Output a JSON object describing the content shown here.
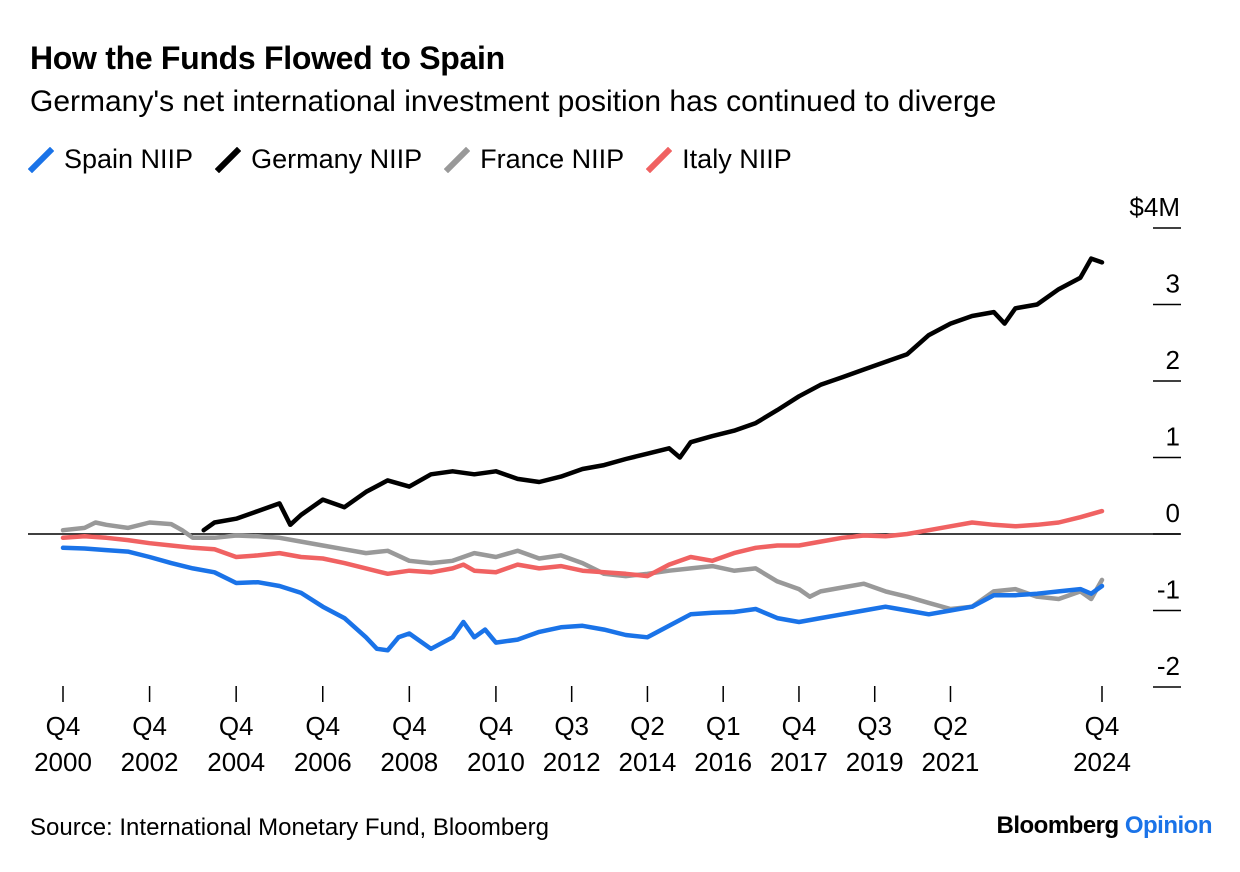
{
  "title": "How the Funds Flowed to Spain",
  "subtitle": "Germany's net international investment position has continued to diverge",
  "source": "Source: International Monetary Fund, Bloomberg",
  "brand": {
    "name": "Bloomberg",
    "suffix": "Opinion"
  },
  "colors": {
    "spain": "#1a73e8",
    "germany": "#000000",
    "france": "#999999",
    "italy": "#f06262"
  },
  "chart_data": {
    "type": "line",
    "title": "How the Funds Flowed to Spain",
    "subtitle": "Germany's net international investment position has continued to diverge",
    "y_unit_label": "$4M",
    "ylim": [
      -2,
      4
    ],
    "xlim": [
      2000.75,
      2024.75
    ],
    "y_ticks": [
      {
        "value": 4,
        "label": "$4M"
      },
      {
        "value": 3,
        "label": "3"
      },
      {
        "value": 2,
        "label": "2"
      },
      {
        "value": 1,
        "label": "1"
      },
      {
        "value": 0,
        "label": "0"
      },
      {
        "value": -1,
        "label": "-1"
      },
      {
        "value": -2,
        "label": "-2"
      }
    ],
    "x_ticks": [
      {
        "x": 2000.75,
        "line1": "Q4",
        "line2": "2000"
      },
      {
        "x": 2002.75,
        "line1": "Q4",
        "line2": "2002"
      },
      {
        "x": 2004.75,
        "line1": "Q4",
        "line2": "2004"
      },
      {
        "x": 2006.75,
        "line1": "Q4",
        "line2": "2006"
      },
      {
        "x": 2008.75,
        "line1": "Q4",
        "line2": "2008"
      },
      {
        "x": 2010.75,
        "line1": "Q4",
        "line2": "2010"
      },
      {
        "x": 2012.5,
        "line1": "Q3",
        "line2": "2012"
      },
      {
        "x": 2014.25,
        "line1": "Q2",
        "line2": "2014"
      },
      {
        "x": 2016.0,
        "line1": "Q1",
        "line2": "2016"
      },
      {
        "x": 2017.75,
        "line1": "Q4",
        "line2": "2017"
      },
      {
        "x": 2019.5,
        "line1": "Q3",
        "line2": "2019"
      },
      {
        "x": 2021.25,
        "line1": "Q2",
        "line2": "2021"
      },
      {
        "x": 2024.75,
        "line1": "Q4",
        "line2": "2024"
      }
    ],
    "series": [
      {
        "name": "Spain NIIP",
        "key": "spain",
        "points": [
          [
            2000.75,
            -0.18
          ],
          [
            2001.25,
            -0.19
          ],
          [
            2001.75,
            -0.21
          ],
          [
            2002.25,
            -0.23
          ],
          [
            2002.75,
            -0.3
          ],
          [
            2003.25,
            -0.38
          ],
          [
            2003.75,
            -0.45
          ],
          [
            2004.25,
            -0.5
          ],
          [
            2004.75,
            -0.64
          ],
          [
            2005.25,
            -0.63
          ],
          [
            2005.75,
            -0.68
          ],
          [
            2006.25,
            -0.77
          ],
          [
            2006.75,
            -0.95
          ],
          [
            2007.25,
            -1.1
          ],
          [
            2007.75,
            -1.35
          ],
          [
            2008.0,
            -1.5
          ],
          [
            2008.25,
            -1.52
          ],
          [
            2008.5,
            -1.35
          ],
          [
            2008.75,
            -1.3
          ],
          [
            2009.25,
            -1.5
          ],
          [
            2009.75,
            -1.35
          ],
          [
            2010.0,
            -1.15
          ],
          [
            2010.25,
            -1.35
          ],
          [
            2010.5,
            -1.25
          ],
          [
            2010.75,
            -1.42
          ],
          [
            2011.25,
            -1.38
          ],
          [
            2011.75,
            -1.28
          ],
          [
            2012.25,
            -1.22
          ],
          [
            2012.75,
            -1.2
          ],
          [
            2013.25,
            -1.25
          ],
          [
            2013.75,
            -1.32
          ],
          [
            2014.25,
            -1.35
          ],
          [
            2014.75,
            -1.2
          ],
          [
            2015.25,
            -1.05
          ],
          [
            2015.75,
            -1.03
          ],
          [
            2016.25,
            -1.02
          ],
          [
            2016.75,
            -0.98
          ],
          [
            2017.25,
            -1.1
          ],
          [
            2017.75,
            -1.15
          ],
          [
            2018.25,
            -1.1
          ],
          [
            2018.75,
            -1.05
          ],
          [
            2019.25,
            -1.0
          ],
          [
            2019.75,
            -0.95
          ],
          [
            2020.25,
            -1.0
          ],
          [
            2020.75,
            -1.05
          ],
          [
            2021.25,
            -1.0
          ],
          [
            2021.75,
            -0.95
          ],
          [
            2022.25,
            -0.8
          ],
          [
            2022.75,
            -0.8
          ],
          [
            2023.25,
            -0.78
          ],
          [
            2023.75,
            -0.75
          ],
          [
            2024.25,
            -0.72
          ],
          [
            2024.5,
            -0.78
          ],
          [
            2024.75,
            -0.68
          ]
        ]
      },
      {
        "name": "Germany NIIP",
        "key": "germany",
        "points": [
          [
            2004.0,
            0.05
          ],
          [
            2004.25,
            0.15
          ],
          [
            2004.75,
            0.2
          ],
          [
            2005.25,
            0.3
          ],
          [
            2005.75,
            0.4
          ],
          [
            2006.0,
            0.12
          ],
          [
            2006.25,
            0.25
          ],
          [
            2006.75,
            0.45
          ],
          [
            2007.25,
            0.35
          ],
          [
            2007.75,
            0.55
          ],
          [
            2008.25,
            0.7
          ],
          [
            2008.75,
            0.62
          ],
          [
            2009.25,
            0.78
          ],
          [
            2009.75,
            0.82
          ],
          [
            2010.25,
            0.78
          ],
          [
            2010.75,
            0.82
          ],
          [
            2011.25,
            0.72
          ],
          [
            2011.75,
            0.68
          ],
          [
            2012.25,
            0.75
          ],
          [
            2012.75,
            0.85
          ],
          [
            2013.25,
            0.9
          ],
          [
            2013.75,
            0.98
          ],
          [
            2014.25,
            1.05
          ],
          [
            2014.75,
            1.12
          ],
          [
            2015.0,
            1.0
          ],
          [
            2015.25,
            1.2
          ],
          [
            2015.75,
            1.28
          ],
          [
            2016.25,
            1.35
          ],
          [
            2016.75,
            1.45
          ],
          [
            2017.25,
            1.62
          ],
          [
            2017.75,
            1.8
          ],
          [
            2018.25,
            1.95
          ],
          [
            2018.75,
            2.05
          ],
          [
            2019.25,
            2.15
          ],
          [
            2019.75,
            2.25
          ],
          [
            2020.25,
            2.35
          ],
          [
            2020.75,
            2.6
          ],
          [
            2021.25,
            2.75
          ],
          [
            2021.75,
            2.85
          ],
          [
            2022.25,
            2.9
          ],
          [
            2022.5,
            2.75
          ],
          [
            2022.75,
            2.95
          ],
          [
            2023.25,
            3.0
          ],
          [
            2023.75,
            3.2
          ],
          [
            2024.25,
            3.35
          ],
          [
            2024.5,
            3.6
          ],
          [
            2024.75,
            3.55
          ]
        ]
      },
      {
        "name": "France NIIP",
        "key": "france",
        "points": [
          [
            2000.75,
            0.05
          ],
          [
            2001.25,
            0.08
          ],
          [
            2001.5,
            0.15
          ],
          [
            2001.75,
            0.12
          ],
          [
            2002.25,
            0.08
          ],
          [
            2002.75,
            0.15
          ],
          [
            2003.25,
            0.13
          ],
          [
            2003.5,
            0.05
          ],
          [
            2003.75,
            -0.05
          ],
          [
            2004.25,
            -0.05
          ],
          [
            2004.75,
            -0.02
          ],
          [
            2005.25,
            -0.03
          ],
          [
            2005.75,
            -0.05
          ],
          [
            2006.25,
            -0.1
          ],
          [
            2006.75,
            -0.15
          ],
          [
            2007.25,
            -0.2
          ],
          [
            2007.75,
            -0.25
          ],
          [
            2008.25,
            -0.22
          ],
          [
            2008.75,
            -0.35
          ],
          [
            2009.25,
            -0.38
          ],
          [
            2009.75,
            -0.35
          ],
          [
            2010.25,
            -0.25
          ],
          [
            2010.75,
            -0.3
          ],
          [
            2011.25,
            -0.22
          ],
          [
            2011.75,
            -0.32
          ],
          [
            2012.25,
            -0.28
          ],
          [
            2012.75,
            -0.38
          ],
          [
            2013.25,
            -0.52
          ],
          [
            2013.75,
            -0.55
          ],
          [
            2014.25,
            -0.52
          ],
          [
            2014.75,
            -0.48
          ],
          [
            2015.25,
            -0.45
          ],
          [
            2015.75,
            -0.42
          ],
          [
            2016.25,
            -0.48
          ],
          [
            2016.75,
            -0.45
          ],
          [
            2017.25,
            -0.62
          ],
          [
            2017.75,
            -0.72
          ],
          [
            2018.0,
            -0.82
          ],
          [
            2018.25,
            -0.75
          ],
          [
            2018.75,
            -0.7
          ],
          [
            2019.25,
            -0.65
          ],
          [
            2019.75,
            -0.75
          ],
          [
            2020.25,
            -0.82
          ],
          [
            2020.75,
            -0.9
          ],
          [
            2021.25,
            -0.98
          ],
          [
            2021.75,
            -0.95
          ],
          [
            2022.25,
            -0.75
          ],
          [
            2022.75,
            -0.72
          ],
          [
            2023.25,
            -0.82
          ],
          [
            2023.75,
            -0.85
          ],
          [
            2024.25,
            -0.75
          ],
          [
            2024.5,
            -0.85
          ],
          [
            2024.75,
            -0.6
          ]
        ]
      },
      {
        "name": "Italy NIIP",
        "key": "italy",
        "points": [
          [
            2000.75,
            -0.05
          ],
          [
            2001.25,
            -0.03
          ],
          [
            2001.75,
            -0.05
          ],
          [
            2002.25,
            -0.08
          ],
          [
            2002.75,
            -0.12
          ],
          [
            2003.25,
            -0.15
          ],
          [
            2003.75,
            -0.18
          ],
          [
            2004.25,
            -0.2
          ],
          [
            2004.75,
            -0.3
          ],
          [
            2005.25,
            -0.28
          ],
          [
            2005.75,
            -0.25
          ],
          [
            2006.25,
            -0.3
          ],
          [
            2006.75,
            -0.32
          ],
          [
            2007.25,
            -0.38
          ],
          [
            2007.75,
            -0.45
          ],
          [
            2008.25,
            -0.52
          ],
          [
            2008.75,
            -0.48
          ],
          [
            2009.25,
            -0.5
          ],
          [
            2009.75,
            -0.45
          ],
          [
            2010.0,
            -0.4
          ],
          [
            2010.25,
            -0.48
          ],
          [
            2010.75,
            -0.5
          ],
          [
            2011.25,
            -0.4
          ],
          [
            2011.75,
            -0.45
          ],
          [
            2012.25,
            -0.42
          ],
          [
            2012.75,
            -0.48
          ],
          [
            2013.25,
            -0.5
          ],
          [
            2013.75,
            -0.52
          ],
          [
            2014.25,
            -0.55
          ],
          [
            2014.75,
            -0.4
          ],
          [
            2015.25,
            -0.3
          ],
          [
            2015.75,
            -0.35
          ],
          [
            2016.25,
            -0.25
          ],
          [
            2016.75,
            -0.18
          ],
          [
            2017.25,
            -0.15
          ],
          [
            2017.75,
            -0.15
          ],
          [
            2018.25,
            -0.1
          ],
          [
            2018.75,
            -0.05
          ],
          [
            2019.25,
            -0.02
          ],
          [
            2019.75,
            -0.03
          ],
          [
            2020.25,
            0.0
          ],
          [
            2020.75,
            0.05
          ],
          [
            2021.25,
            0.1
          ],
          [
            2021.75,
            0.15
          ],
          [
            2022.25,
            0.12
          ],
          [
            2022.75,
            0.1
          ],
          [
            2023.25,
            0.12
          ],
          [
            2023.75,
            0.15
          ],
          [
            2024.25,
            0.22
          ],
          [
            2024.75,
            0.3
          ]
        ]
      }
    ]
  }
}
